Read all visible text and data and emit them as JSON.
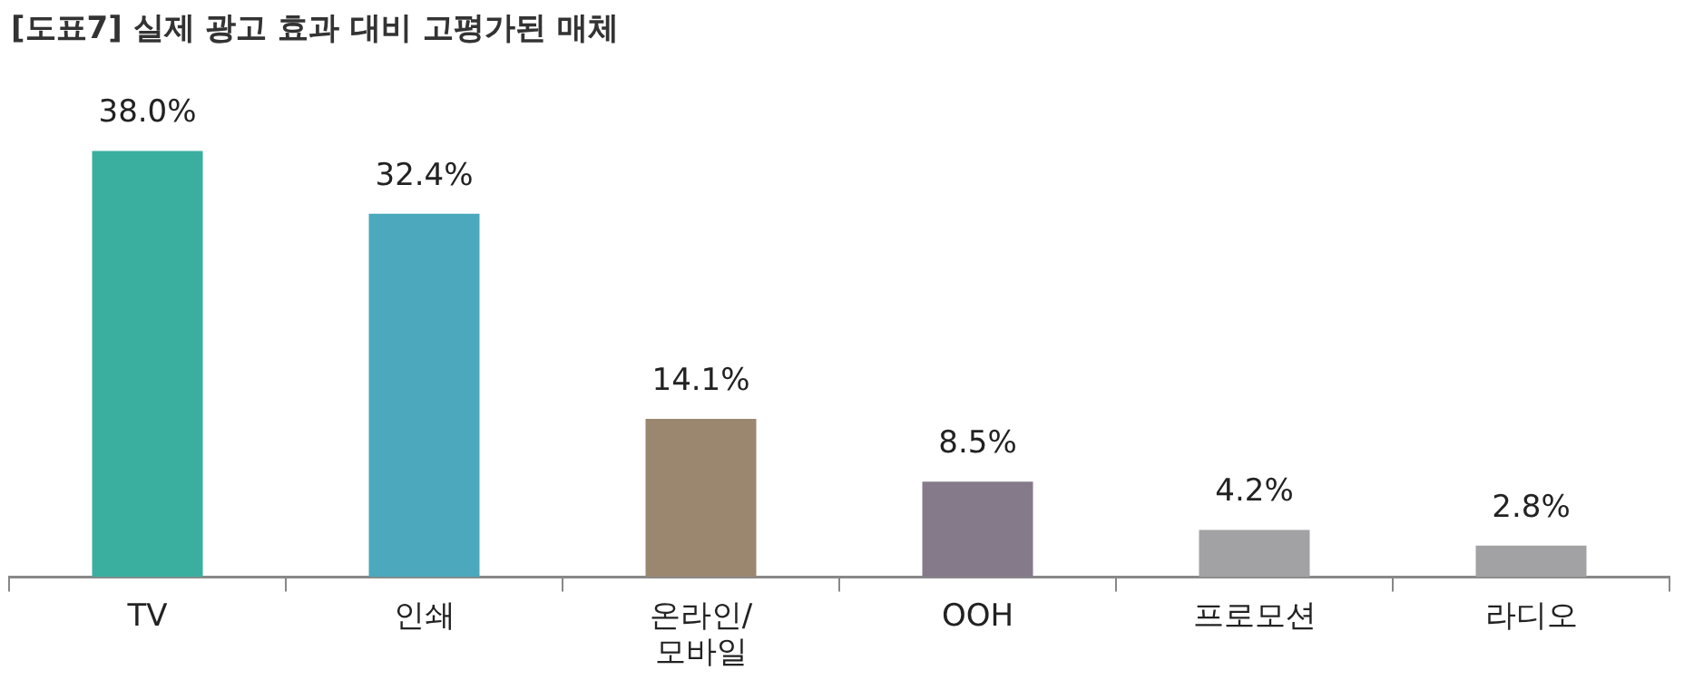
{
  "chart_data": {
    "type": "bar",
    "title": "[도표7] 실제 광고 효과 대비 고평가된 매체",
    "categories": [
      "TV",
      "인쇄",
      "온라인/모바일",
      "OOH",
      "프로모션",
      "라디오"
    ],
    "values": [
      38.0,
      32.4,
      14.1,
      8.5,
      4.2,
      2.8
    ],
    "colors": [
      "#3aafa0",
      "#4ba8bd",
      "#9b8670",
      "#857a8a",
      "#a2a2a5",
      "#a2a2a5"
    ],
    "value_labels": [
      "38.0%",
      "32.4%",
      "14.1%",
      "8.5%",
      "4.2%",
      "2.8%"
    ],
    "grid": false,
    "legend": false
  }
}
